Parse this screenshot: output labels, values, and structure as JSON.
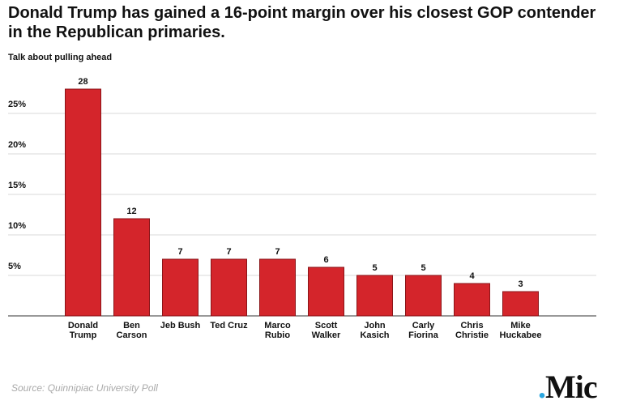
{
  "chart_data": {
    "type": "bar",
    "title": "Donald Trump has gained a 16-point margin over his closest GOP contender in the Republican primaries.",
    "subtitle": "Talk about pulling ahead",
    "categories": [
      [
        "Donald",
        "Trump"
      ],
      [
        "Ben",
        "Carson"
      ],
      [
        "Jeb Bush"
      ],
      [
        "Ted Cruz"
      ],
      [
        "Marco",
        "Rubio"
      ],
      [
        "Scott",
        "Walker"
      ],
      [
        "John",
        "Kasich"
      ],
      [
        "Carly",
        "Fiorina"
      ],
      [
        "Chris",
        "Christie"
      ],
      [
        "Mike",
        "Huckabee"
      ]
    ],
    "values": [
      28,
      12,
      7,
      7,
      7,
      6,
      5,
      5,
      4,
      3
    ],
    "data_labels": [
      "28",
      "12",
      "7",
      "7",
      "7",
      "6",
      "5",
      "5",
      "4",
      "3"
    ],
    "ylim": [
      0,
      29
    ],
    "yticks": [
      5,
      10,
      15,
      20,
      25
    ],
    "ytick_labels": [
      "5%",
      "10%",
      "15%",
      "20%",
      "25%"
    ],
    "grid": true,
    "bar_color": "#d4252b",
    "bar_edge_color": "#8a1418",
    "xlabel": "",
    "ylabel": ""
  },
  "footer": {
    "source": "Source: Quinnipiac University Poll",
    "logo_dot": ".",
    "logo_text": "Mic",
    "logo_dot_color": "#2aa6df"
  }
}
